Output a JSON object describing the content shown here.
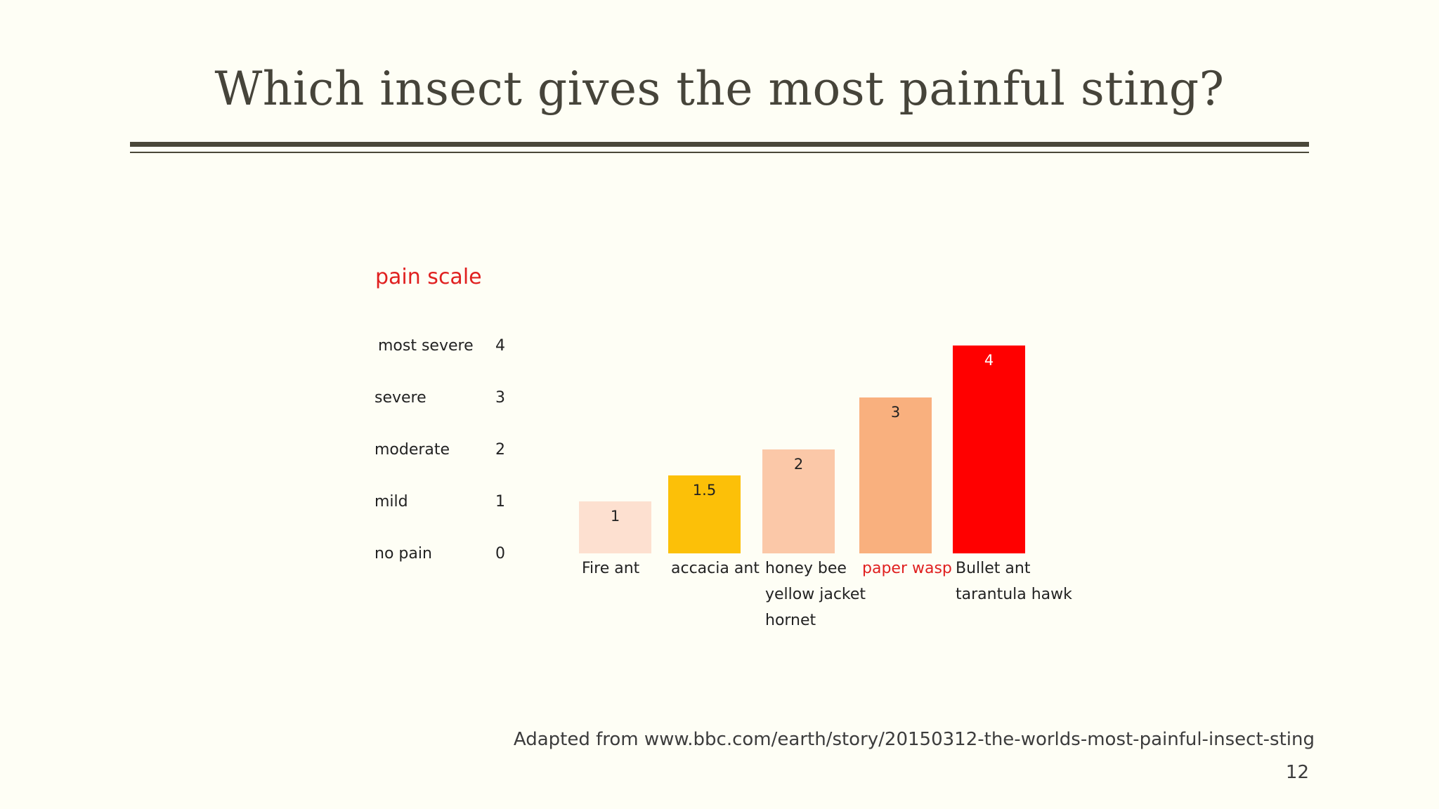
{
  "slide": {
    "title": "Which insect gives the most painful sting?",
    "source": "Adapted from www.bbc.com/earth/story/20150312-the-worlds-most-painful-insect-sting",
    "page_number": "12"
  },
  "chart_data": {
    "type": "bar",
    "legend_title": "pain scale",
    "scale": [
      {
        "label": "most severe",
        "value": 4
      },
      {
        "label": "severe",
        "value": 3
      },
      {
        "label": "moderate",
        "value": 2
      },
      {
        "label": "mild",
        "value": 1
      },
      {
        "label": "no pain",
        "value": 0
      }
    ],
    "categories": [
      [
        "Fire ant"
      ],
      [
        "accacia ant"
      ],
      [
        "honey bee",
        "yellow jacket",
        "hornet"
      ],
      [
        "paper wasp"
      ],
      [
        "Bullet ant",
        "tarantula hawk"
      ]
    ],
    "values": [
      1,
      1.5,
      2,
      3,
      4
    ],
    "value_labels": [
      "1",
      "1.5",
      "2",
      "3",
      "4"
    ],
    "bar_colors": [
      "#fde0d0",
      "#fcc008",
      "#fbc8a8",
      "#f9b07e",
      "#ff0000"
    ],
    "category_label_colors": [
      "#222222",
      "#222222",
      "#222222",
      "#e02020",
      "#222222"
    ],
    "value_label_colors": [
      "#222222",
      "#222222",
      "#222222",
      "#222222",
      "#ffffff"
    ],
    "legend_title_color": "#e02020",
    "ylim": [
      0,
      4
    ]
  }
}
